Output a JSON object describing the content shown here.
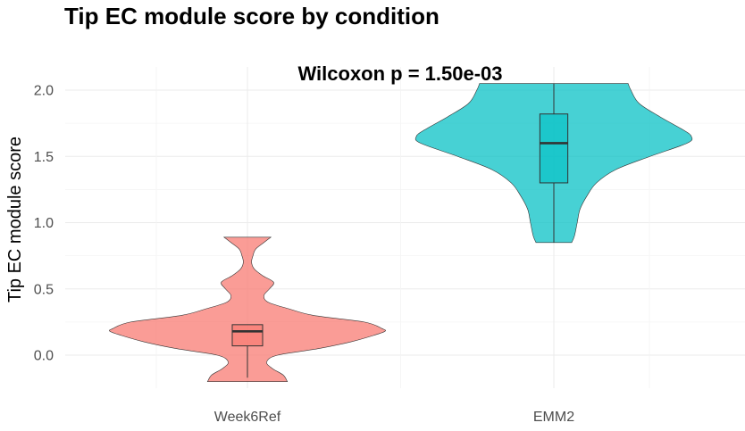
{
  "chart_data": {
    "type": "violin",
    "title": "Tip EC module score by condition",
    "annotation": "Wilcoxon p = 1.50e-03",
    "xlabel": "",
    "ylabel": "Tip EC module score",
    "ylim": [
      -0.23,
      2.05
    ],
    "yticks": [
      "0.0",
      "0.5",
      "1.0",
      "1.5",
      "2.0"
    ],
    "ytick_values": [
      0.0,
      0.5,
      1.0,
      1.5,
      2.0
    ],
    "categories": [
      "Week6Ref",
      "EMM2"
    ],
    "grid": true,
    "legend": "none",
    "groups": [
      {
        "name": "Week6Ref",
        "color": "#F8766D",
        "y_min": -0.2,
        "y_max": 0.89,
        "box": {
          "q1": 0.07,
          "median": 0.18,
          "q3": 0.23,
          "whisker_low": -0.17,
          "whisker_high": 0.23
        },
        "density": [
          [
            -0.2,
            0.29
          ],
          [
            -0.15,
            0.26
          ],
          [
            -0.1,
            0.18
          ],
          [
            -0.05,
            0.14
          ],
          [
            0.0,
            0.22
          ],
          [
            0.05,
            0.52
          ],
          [
            0.1,
            0.75
          ],
          [
            0.15,
            0.92
          ],
          [
            0.18,
            1.0
          ],
          [
            0.2,
            0.98
          ],
          [
            0.25,
            0.85
          ],
          [
            0.3,
            0.48
          ],
          [
            0.35,
            0.3
          ],
          [
            0.4,
            0.15
          ],
          [
            0.45,
            0.12
          ],
          [
            0.5,
            0.16
          ],
          [
            0.55,
            0.19
          ],
          [
            0.6,
            0.11
          ],
          [
            0.65,
            0.05
          ],
          [
            0.7,
            0.03
          ],
          [
            0.75,
            0.04
          ],
          [
            0.8,
            0.06
          ],
          [
            0.85,
            0.12
          ],
          [
            0.89,
            0.17
          ]
        ]
      },
      {
        "name": "EMM2",
        "color": "#00BFC4",
        "y_min": 0.85,
        "y_max": 2.05,
        "box": {
          "q1": 1.3,
          "median": 1.6,
          "q3": 1.82,
          "whisker_low": 0.85,
          "whisker_high": 2.05
        },
        "density": [
          [
            0.85,
            0.13
          ],
          [
            0.9,
            0.15
          ],
          [
            1.0,
            0.17
          ],
          [
            1.1,
            0.19
          ],
          [
            1.2,
            0.24
          ],
          [
            1.3,
            0.31
          ],
          [
            1.4,
            0.45
          ],
          [
            1.5,
            0.7
          ],
          [
            1.6,
            0.97
          ],
          [
            1.65,
            1.0
          ],
          [
            1.7,
            0.94
          ],
          [
            1.8,
            0.77
          ],
          [
            1.9,
            0.62
          ],
          [
            2.0,
            0.56
          ],
          [
            2.05,
            0.54
          ]
        ]
      }
    ]
  }
}
